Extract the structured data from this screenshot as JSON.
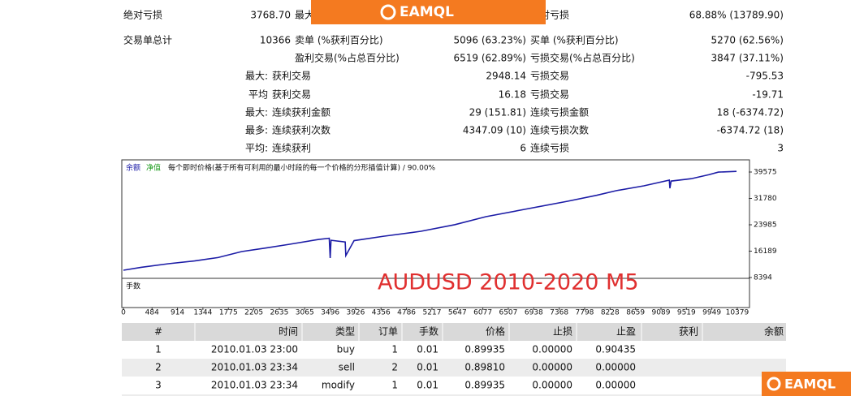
{
  "watermark": "EAMQL",
  "stats": {
    "rows": [
      {
        "a_label": "绝对亏损",
        "a_value": "3768.70",
        "b_label": "最大亏损",
        "c_label": "相对亏损",
        "c_value": "68.88% (13789.90)"
      },
      {
        "a_label": "交易单总计",
        "a_value": "10366",
        "b_label": "卖单 (%获利百分比)",
        "b_value": "5096 (63.23%)",
        "c_label": "买单 (%获利百分比)",
        "c_value": "5270 (62.56%)"
      },
      {
        "b_label": "盈利交易(%占总百分比)",
        "b_value": "6519 (62.89%)",
        "c_label": "亏损交易(%占总百分比)",
        "c_value": "3847 (37.11%)"
      },
      {
        "b_prefix": "最大:",
        "b_label": "获利交易",
        "b_value": "2948.14",
        "c_label": "亏损交易",
        "c_value": "-795.53"
      },
      {
        "b_prefix": "平均",
        "b_label": "获利交易",
        "b_value": "16.18",
        "c_label": "亏损交易",
        "c_value": "-19.71"
      },
      {
        "b_prefix": "最大:",
        "b_label": "连续获利金额",
        "b_value": "29 (151.81)",
        "c_label": "连续亏损金额",
        "c_value": "18 (-6374.72)"
      },
      {
        "b_prefix": "最多:",
        "b_label": "连续获利次数",
        "b_value": "4347.09 (10)",
        "c_label": "连续亏损次数",
        "c_value": "-6374.72 (18)"
      },
      {
        "b_prefix": "平均:",
        "b_label": "连续获利",
        "b_value": "6",
        "c_label": "连续亏损",
        "c_value": "3"
      }
    ]
  },
  "chart_data": {
    "type": "line",
    "legend_balance": "余额",
    "legend_equity": "净值",
    "subtitle": "每个即时价格(基于所有可利用的最小时段的每一个价格的分形插值计算) / 90.00%",
    "annotation": "AUDUSD 2010-2020 M5",
    "volume_label": "手数",
    "x": [
      0,
      300,
      760,
      1200,
      1600,
      2000,
      2400,
      2800,
      3300,
      3480,
      3496,
      3510,
      3750,
      3760,
      3900,
      4400,
      5030,
      5600,
      6130,
      6800,
      7510,
      8000,
      8330,
      8800,
      9230,
      9240,
      9260,
      9600,
      9900,
      10060,
      10366
    ],
    "series": [
      {
        "name": "余额",
        "color": "#1c1ca6",
        "values": [
          10550,
          11400,
          12470,
          13300,
          14300,
          16070,
          17100,
          18200,
          19660,
          20000,
          14150,
          19400,
          18900,
          14870,
          19300,
          20600,
          22060,
          24000,
          26380,
          28600,
          30940,
          32700,
          34060,
          35500,
          37170,
          34770,
          36900,
          37600,
          38800,
          39550,
          39780
        ]
      }
    ],
    "xlim": [
      0,
      10572
    ],
    "ylim": [
      8394,
      42452
    ],
    "xticks": [
      0,
      484,
      914,
      1344,
      1775,
      2205,
      2635,
      3065,
      3496,
      3926,
      4356,
      4786,
      5217,
      5647,
      6077,
      6507,
      6938,
      7368,
      7798,
      8228,
      8659,
      9089,
      9519,
      9949,
      10379
    ],
    "yticks": [
      8394,
      16189,
      23985,
      31780,
      39575
    ]
  },
  "trades": {
    "header": [
      "#",
      "时间",
      "类型",
      "订单",
      "手数",
      "价格",
      "止损",
      "止盈",
      "获利",
      "余额"
    ],
    "rows": [
      [
        "1",
        "2010.01.03 23:00",
        "buy",
        "1",
        "0.01",
        "0.89935",
        "0.00000",
        "0.90435"
      ],
      [
        "2",
        "2010.01.03 23:34",
        "sell",
        "2",
        "0.01",
        "0.89810",
        "0.00000",
        "0.00000"
      ],
      [
        "3",
        "2010.01.03 23:34",
        "modify",
        "1",
        "0.01",
        "0.89935",
        "0.00000",
        "0.00000"
      ]
    ]
  }
}
